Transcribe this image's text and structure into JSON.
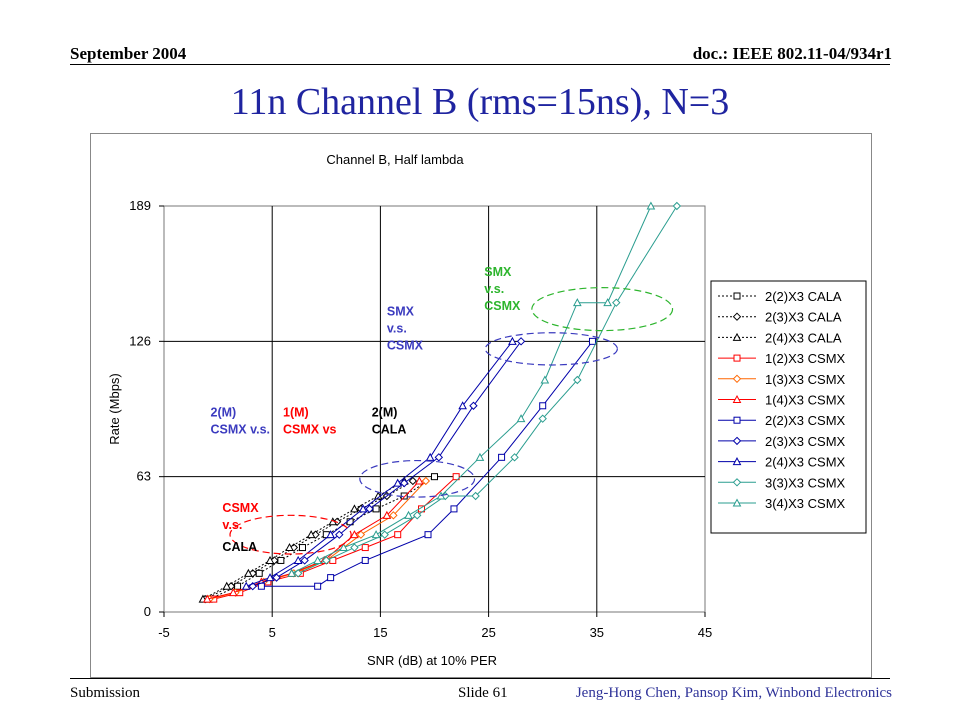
{
  "header": {
    "date": "September 2004",
    "doc": "doc.: IEEE 802.11-04/934r1"
  },
  "slide_title": "11n Channel B (rms=15ns), N=3",
  "footer": {
    "left": "Submission",
    "center": "Slide 61",
    "right": "Jeng-Hong Chen, Pansop Kim, Winbond Electronics"
  },
  "chart_data": {
    "type": "line",
    "title": "Channel B, Half lambda",
    "xlabel": "SNR (dB) at 10% PER",
    "ylabel": "Rate (Mbps)",
    "xlim": [
      -5,
      45
    ],
    "ylim": [
      0,
      189
    ],
    "xticks": [
      -5,
      5,
      15,
      25,
      35,
      45
    ],
    "yticks": [
      0,
      63,
      126,
      189
    ],
    "grid": "vertical and horizontal at ticks",
    "legend_position": "right",
    "series": [
      {
        "name": "2(2)X3 CALA",
        "color": "#000000",
        "marker": "square",
        "dash": true,
        "x": [
          -0.8,
          1.8,
          3.8,
          5.8,
          7.8,
          10.0,
          12.2,
          14.6,
          17.2,
          20.0
        ],
        "y": [
          6,
          12,
          18,
          24,
          30,
          36,
          42,
          48,
          54,
          63
        ]
      },
      {
        "name": "2(3)X3 CALA",
        "color": "#000000",
        "marker": "diamond",
        "dash": true,
        "x": [
          -1.2,
          1.2,
          3.2,
          5.2,
          7.0,
          9.0,
          11.0,
          13.2,
          15.6,
          18.0
        ],
        "y": [
          6,
          12,
          18,
          24,
          30,
          36,
          42,
          48,
          54,
          61
        ]
      },
      {
        "name": "2(4)X3 CALA",
        "color": "#000000",
        "marker": "triangle",
        "dash": true,
        "x": [
          -1.4,
          0.8,
          2.8,
          4.8,
          6.6,
          8.6,
          10.6,
          12.6,
          14.8,
          17.2
        ],
        "y": [
          6,
          12,
          18,
          24,
          30,
          36,
          42,
          48,
          54,
          61
        ]
      },
      {
        "name": "1(2)X3 CSMX",
        "color": "#ff0000",
        "marker": "square",
        "dash": false,
        "x": [
          -0.4,
          2.0,
          4.6,
          7.6,
          10.6,
          13.6,
          16.6,
          18.8,
          22.0
        ],
        "y": [
          6,
          9,
          14,
          18,
          24,
          30,
          36,
          48,
          63
        ]
      },
      {
        "name": "1(3)X3 CSMX",
        "color": "#ff6600",
        "marker": "diamond",
        "dash": false,
        "x": [
          -0.8,
          1.6,
          4.2,
          7.0,
          10.0,
          13.2,
          16.2,
          19.2
        ],
        "y": [
          6,
          9,
          14,
          18,
          24,
          36,
          45,
          61
        ]
      },
      {
        "name": "1(4)X3 CSMX",
        "color": "#ff0000",
        "marker": "triangle",
        "dash": false,
        "x": [
          -1.0,
          1.4,
          4.0,
          6.8,
          9.8,
          12.6,
          15.6,
          18.6
        ],
        "y": [
          6,
          9,
          14,
          18,
          24,
          36,
          45,
          61
        ]
      },
      {
        "name": "2(2)X3 CSMX",
        "color": "#0000aa",
        "marker": "square",
        "dash": false,
        "x": [
          4.0,
          9.2,
          10.4,
          13.6,
          19.4,
          21.8,
          26.2,
          30.0,
          34.6
        ],
        "y": [
          12,
          12,
          16,
          24,
          36,
          48,
          72,
          96,
          126
        ]
      },
      {
        "name": "2(3)X3 CSMX",
        "color": "#0000aa",
        "marker": "diamond",
        "dash": false,
        "x": [
          3.2,
          5.4,
          8.0,
          11.2,
          14.0,
          17.2,
          20.4,
          23.6,
          28.0
        ],
        "y": [
          12,
          16,
          24,
          36,
          48,
          60,
          72,
          96,
          126
        ]
      },
      {
        "name": "2(4)X3 CSMX",
        "color": "#0000aa",
        "marker": "triangle",
        "dash": false,
        "x": [
          2.6,
          4.8,
          7.4,
          10.4,
          13.4,
          16.6,
          19.6,
          22.6,
          27.2
        ],
        "y": [
          12,
          16,
          24,
          36,
          48,
          60,
          72,
          96,
          126
        ]
      },
      {
        "name": "3(3)X3 CSMX",
        "color": "#2a9d8f",
        "marker": "diamond",
        "dash": false,
        "x": [
          7.4,
          10.0,
          12.6,
          15.4,
          18.4,
          21.0,
          23.8,
          27.4,
          30.0,
          33.2,
          36.8,
          42.4
        ],
        "y": [
          18,
          24,
          30,
          36,
          45,
          54,
          54,
          72,
          90,
          108,
          144,
          189
        ]
      },
      {
        "name": "3(4)X3 CSMX",
        "color": "#2a9d8f",
        "marker": "triangle",
        "dash": false,
        "x": [
          6.8,
          9.2,
          11.6,
          14.6,
          17.6,
          20.6,
          24.2,
          28.0,
          30.2,
          33.2,
          36.0,
          40.0
        ],
        "y": [
          18,
          24,
          30,
          36,
          45,
          54,
          72,
          90,
          108,
          144,
          144,
          189
        ]
      }
    ],
    "annotations": [
      {
        "lines": [
          "SMX",
          "v.s.",
          "CSMX"
        ],
        "color": "#2db52d",
        "x": 24.6,
        "y": 156.5
      },
      {
        "lines": [
          "SMX",
          "v.s.",
          "CSMX"
        ],
        "color": "#3b3bbf",
        "x": 15.6,
        "y": 138.0
      },
      {
        "lines": [
          "2(M)",
          "CSMX v.s."
        ],
        "color": "#3b3bbf",
        "x": -0.7,
        "y": 91.0
      },
      {
        "lines": [
          "1(M)",
          "CSMX vs"
        ],
        "color": "#ff0000",
        "x": 6.0,
        "y": 91.0
      },
      {
        "lines": [
          "2(M)",
          "CALA"
        ],
        "color": "#000000",
        "x": 14.2,
        "y": 91.0
      },
      {
        "lines": [
          "CSMX",
          "v.s."
        ],
        "color": "#ff0000",
        "x": 0.4,
        "y": 46.5
      },
      {
        "lines": [
          "CALA"
        ],
        "color": "#000000",
        "x": 0.4,
        "y": 28.5
      }
    ],
    "ellipses": [
      {
        "color": "#2db52d",
        "cx": 35.5,
        "cy": 141,
        "rx": 6.5,
        "ry": 10
      },
      {
        "color": "#3b3bbf",
        "cx": 30.8,
        "cy": 122.5,
        "rx": 6.1,
        "ry": 7.5
      },
      {
        "color": "#3b3bbf",
        "cx": 18.4,
        "cy": 62,
        "rx": 5.3,
        "ry": 8.5
      },
      {
        "color": "#ff0000",
        "cx": 6.7,
        "cy": 36,
        "rx": 5.6,
        "ry": 9
      }
    ]
  }
}
